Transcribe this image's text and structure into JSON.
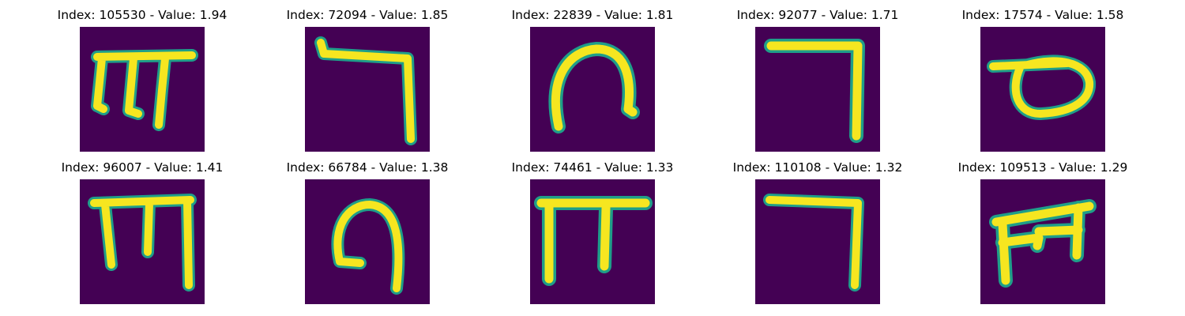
{
  "panels": [
    {
      "title": "Index: 105530 - Value: 1.94",
      "glyph": "m-glyph-icon"
    },
    {
      "title": "Index: 72094 - Value: 1.85",
      "glyph": "seven-glyph-icon"
    },
    {
      "title": "Index: 22839 - Value: 1.81",
      "glyph": "arch-glyph-icon"
    },
    {
      "title": "Index: 92077 - Value: 1.71",
      "glyph": "seven-glyph-icon"
    },
    {
      "title": "Index: 17574 - Value: 1.58",
      "glyph": "loop-glyph-icon"
    },
    {
      "title": "Index: 96007 - Value: 1.41",
      "glyph": "m-glyph-icon"
    },
    {
      "title": "Index: 66784 - Value: 1.38",
      "glyph": "arch-glyph-icon"
    },
    {
      "title": "Index: 74461 - Value: 1.33",
      "glyph": "pi-glyph-icon"
    },
    {
      "title": "Index: 110108 - Value: 1.32",
      "glyph": "seven-glyph-icon"
    },
    {
      "title": "Index: 109513 - Value: 1.29",
      "glyph": "m-glyph-icon"
    }
  ],
  "colors": {
    "background": "#440154",
    "stroke": "#f6e620",
    "edge": "#1f9e89"
  }
}
